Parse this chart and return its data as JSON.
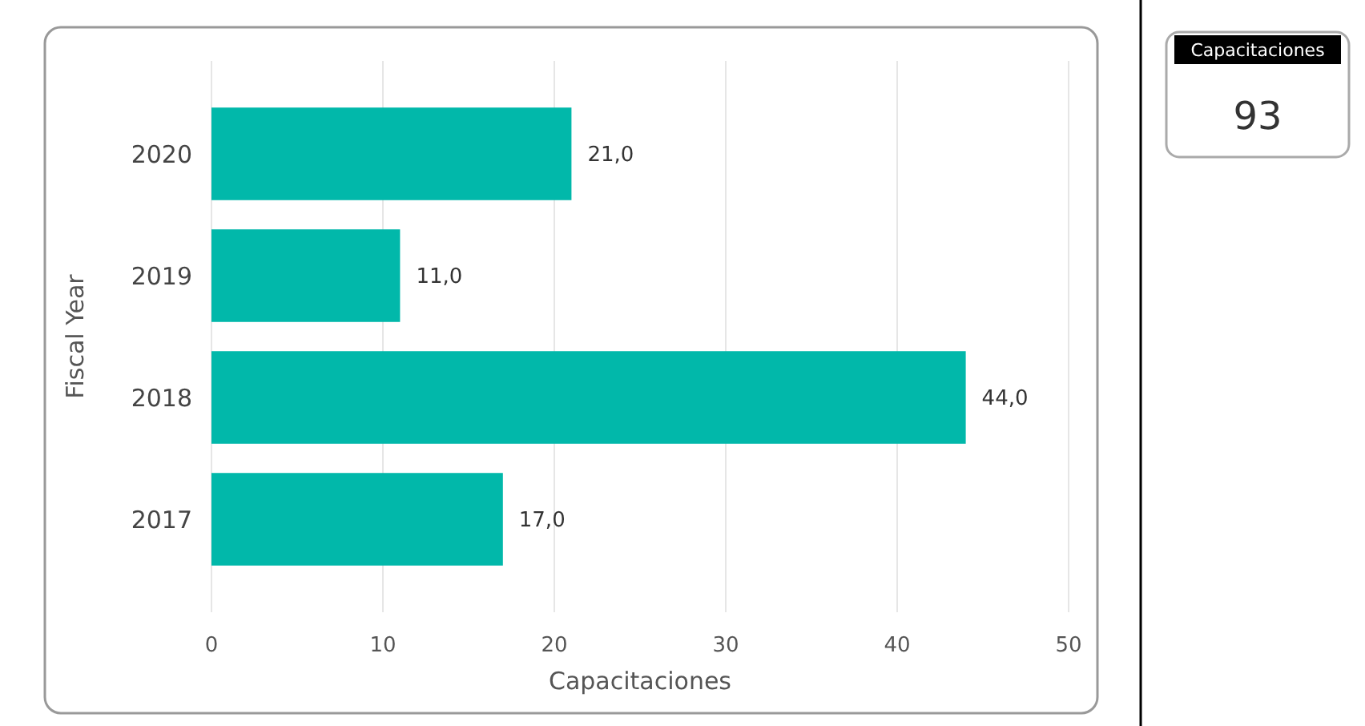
{
  "chart_data": [
    {
      "type": "bar",
      "orientation": "horizontal",
      "xlabel": "Capacitaciones",
      "ylabel": "Fiscal Year",
      "categories": [
        "2020",
        "2019",
        "2018",
        "2017"
      ],
      "values": [
        21,
        11,
        44,
        17
      ],
      "value_labels": [
        "21,0",
        "11,0",
        "44,0",
        "17,0"
      ],
      "color": "#01b8aa",
      "xlim": [
        0,
        50
      ],
      "xticks": [
        0,
        10,
        20,
        30,
        40,
        50
      ],
      "grid": "x"
    },
    {
      "type": "other",
      "title": "Capacitaciones",
      "annotations": [
        "93"
      ]
    }
  ]
}
